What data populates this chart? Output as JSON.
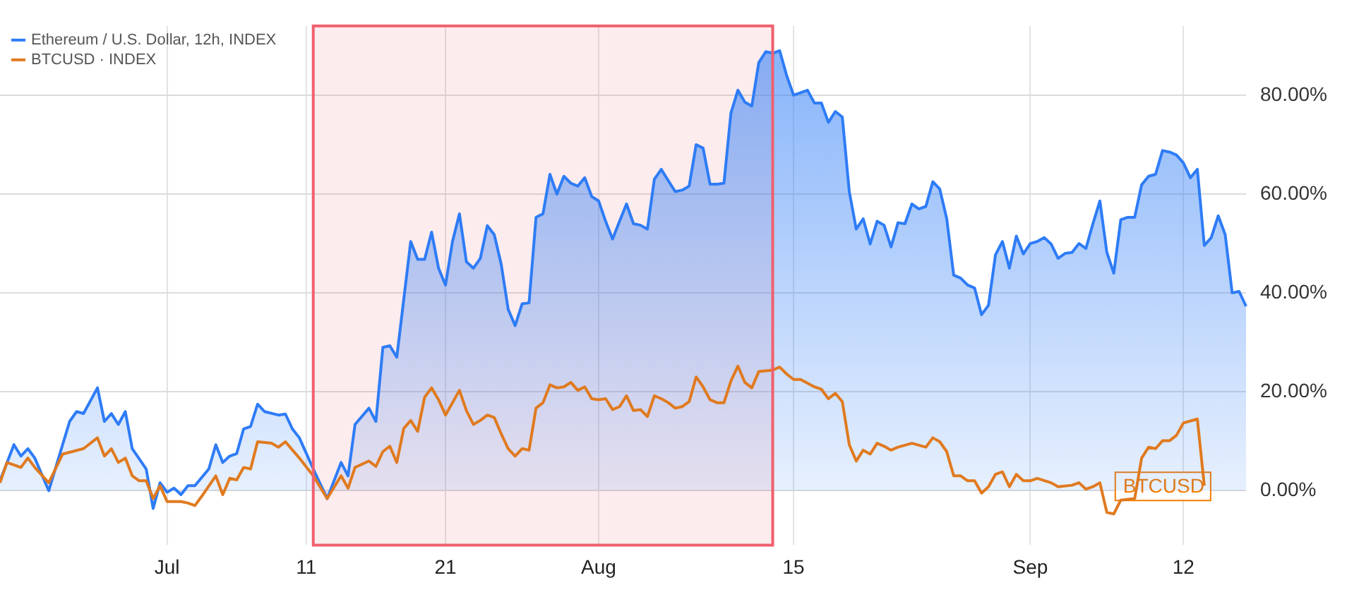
{
  "chart_data": {
    "type": "area",
    "legend": "top left",
    "grid": true,
    "xlim": [
      "--06-19",
      "--09-16T12:00"
    ],
    "xticks": [
      {
        "value": "--07-01",
        "label": "Jul"
      },
      {
        "value": "--07-11",
        "label": "11"
      },
      {
        "value": "--07-21",
        "label": "21"
      },
      {
        "value": "--08-01",
        "label": "Aug"
      },
      {
        "value": "--08-15",
        "label": "15"
      },
      {
        "value": "--09-01",
        "label": "Sep"
      },
      {
        "value": "--09-12",
        "label": "12"
      }
    ],
    "ylim": [
      -11,
      94
    ],
    "yticks": [
      {
        "value": 0,
        "label": "0.00%"
      },
      {
        "value": 20,
        "label": "20.00%"
      },
      {
        "value": 40,
        "label": "40.00%"
      },
      {
        "value": 60,
        "label": "60.00%"
      },
      {
        "value": 80,
        "label": "80.00%"
      }
    ],
    "bands": [
      {
        "axis": "x",
        "from": "--07-11T12:00",
        "to": "--08-13T12:00",
        "color": "#f0606e"
      }
    ],
    "annotations": [
      {
        "text": "BTCUSD",
        "x": "--09-13T12:00",
        "y": 1
      }
    ],
    "series": [
      {
        "name": "Ethereum / U.S. Dollar, 12h, INDEX",
        "color": "#2e7cf6",
        "x": [
          "--06-19",
          "--06-20",
          "--06-20T12:00",
          "--06-21",
          "--06-21T12:00",
          "--06-22T12:00",
          "--06-24",
          "--06-24T12:00",
          "--06-25",
          "--06-26",
          "--06-26T12:00",
          "--06-27",
          "--06-27T12:00",
          "--06-28",
          "--06-28T12:00",
          "--06-29T12:00",
          "--06-30",
          "--06-30T12:00",
          "--07-01",
          "--07-01T12:00",
          "--07-02",
          "--07-02T12:00",
          "--07-03",
          "--07-04",
          "--07-04T12:00",
          "--07-05",
          "--07-05T12:00",
          "--07-06",
          "--07-06T12:00",
          "--07-07",
          "--07-07T12:00",
          "--07-08",
          "--07-09",
          "--07-09T12:00",
          "--07-10",
          "--07-10T12:00",
          "--07-11T12:00",
          "--07-12T12:00",
          "--07-13T12:00",
          "--07-14",
          "--07-14T12:00",
          "--07-15T12:00",
          "--07-16",
          "--07-16T12:00",
          "--07-17",
          "--07-17T12:00",
          "--07-18T12:00",
          "--07-19",
          "--07-19T12:00",
          "--07-20",
          "--07-20T12:00",
          "--07-21",
          "--07-21T12:00",
          "--07-22",
          "--07-22T12:00",
          "--07-23",
          "--07-23T12:00",
          "--07-24",
          "--07-24T12:00",
          "--07-25",
          "--07-25T12:00",
          "--07-26",
          "--07-26T12:00",
          "--07-27",
          "--07-27T12:00",
          "--07-28",
          "--07-28T12:00",
          "--07-29",
          "--07-29T12:00",
          "--07-30",
          "--07-30T12:00",
          "--07-31",
          "--07-31T12:00",
          "--08-01",
          "--08-01T12:00",
          "--08-02",
          "--08-02T12:00",
          "--08-03",
          "--08-03T12:00",
          "--08-04",
          "--08-04T12:00",
          "--08-05",
          "--08-05T12:00",
          "--08-06",
          "--08-06T12:00",
          "--08-07",
          "--08-07T12:00",
          "--08-08",
          "--08-08T12:00",
          "--08-09",
          "--08-09T12:00",
          "--08-10",
          "--08-10T12:00",
          "--08-11",
          "--08-11T12:00",
          "--08-12",
          "--08-12T12:00",
          "--08-13",
          "--08-13T12:00",
          "--08-14",
          "--08-14T12:00",
          "--08-15",
          "--08-15T12:00",
          "--08-16",
          "--08-16T12:00",
          "--08-17",
          "--08-17T12:00",
          "--08-18",
          "--08-18T12:00",
          "--08-19",
          "--08-19T12:00",
          "--08-20",
          "--08-20T12:00",
          "--08-21",
          "--08-21T12:00",
          "--08-22",
          "--08-22T12:00",
          "--08-23",
          "--08-23T12:00",
          "--08-24",
          "--08-24T12:00",
          "--08-25",
          "--08-25T12:00",
          "--08-26",
          "--08-26T12:00",
          "--08-27",
          "--08-27T12:00",
          "--08-28",
          "--08-28T12:00",
          "--08-29",
          "--08-29T12:00",
          "--08-30",
          "--08-30T12:00",
          "--08-31",
          "--08-31T12:00",
          "--09-01",
          "--09-01T12:00",
          "--09-02",
          "--09-02T12:00",
          "--09-03",
          "--09-03T12:00",
          "--09-04",
          "--09-04T12:00",
          "--09-05",
          "--09-05T12:00",
          "--09-06",
          "--09-06T12:00",
          "--09-07",
          "--09-07T12:00",
          "--09-08",
          "--09-08T12:00",
          "--09-09",
          "--09-09T12:00",
          "--09-10",
          "--09-10T12:00",
          "--09-11",
          "--09-11T12:00",
          "--09-12",
          "--09-12T12:00",
          "--09-13",
          "--09-13T12:00",
          "--09-14",
          "--09-14T12:00",
          "--09-15",
          "--09-15T12:00",
          "--09-16",
          "--09-16T12:00"
        ],
        "values": [
          2,
          9.3,
          7,
          8.5,
          6.6,
          0,
          14,
          16,
          15.6,
          20.8,
          14,
          15.6,
          13.4,
          16,
          8.5,
          4.4,
          -3.6,
          1.6,
          -0.3,
          0.5,
          -0.8,
          1,
          1,
          4.4,
          9.3,
          5.7,
          7,
          7.5,
          12.5,
          13,
          17.5,
          16,
          15.3,
          15.5,
          12.5,
          10.7,
          4.4,
          -1.6,
          5.7,
          3,
          13.4,
          16.7,
          14,
          29,
          29.3,
          27,
          50.4,
          46.8,
          46.8,
          52.3,
          45,
          41.6,
          50.4,
          56,
          46.3,
          45,
          47,
          53.6,
          51.8,
          45.8,
          36.7,
          33.4,
          37.8,
          38,
          55.3,
          56,
          64,
          60,
          63.6,
          62.2,
          61.6,
          63.3,
          59.5,
          58.6,
          54.5,
          50.9,
          54.5,
          58,
          54,
          53.7,
          52.9,
          63,
          65,
          62.7,
          60.5,
          60.8,
          61.6,
          70,
          69.3,
          62,
          62,
          62.2,
          76.4,
          81,
          78.6,
          77.8,
          86.6,
          88.8,
          88.5,
          89,
          84,
          80,
          80.5,
          81,
          78.4,
          78.4,
          74.5,
          76.7,
          75.6,
          60.5,
          52.9,
          55,
          49.9,
          54.5,
          53.7,
          49.3,
          54.2,
          54,
          58,
          57,
          57.5,
          62.5,
          61,
          55,
          43.6,
          43,
          41.6,
          41,
          35.6,
          37.5,
          47.7,
          50.4,
          45,
          51.5,
          47.9,
          50,
          50.4,
          51.2,
          49.9,
          47,
          48,
          48.2,
          50,
          49,
          54,
          58.6,
          48.2,
          44,
          54.8,
          55.3,
          55.3,
          61.9,
          63.6,
          64,
          68.8,
          68.5,
          67.9,
          66.3,
          63.3,
          65,
          49.6,
          51.2,
          55.6,
          51.8,
          40,
          40.3,
          37.3
        ]
      },
      {
        "name": "BTCUSD · INDEX",
        "type": "line",
        "color": "#e07a1f",
        "x": [
          "--06-19",
          "--06-19T12:00",
          "--06-20T12:00",
          "--06-21",
          "--06-21T12:00",
          "--06-22T12:00",
          "--06-23T12:00",
          "--06-25",
          "--06-26",
          "--06-26T12:00",
          "--06-27",
          "--06-27T12:00",
          "--06-28",
          "--06-28T12:00",
          "--06-29",
          "--06-29T12:00",
          "--06-30",
          "--06-30T12:00",
          "--07-01",
          "--07-02",
          "--07-02T12:00",
          "--07-03",
          "--07-03T12:00",
          "--07-04T12:00",
          "--07-05",
          "--07-05T12:00",
          "--07-06",
          "--07-06T12:00",
          "--07-07",
          "--07-07T12:00",
          "--07-08T12:00",
          "--07-09",
          "--07-09T12:00",
          "--07-10T12:00",
          "--07-11T12:00",
          "--07-12T12:00",
          "--07-13T12:00",
          "--07-14",
          "--07-14T12:00",
          "--07-15T12:00",
          "--07-16",
          "--07-16T12:00",
          "--07-17",
          "--07-17T12:00",
          "--07-18",
          "--07-18T12:00",
          "--07-19",
          "--07-19T12:00",
          "--07-20",
          "--07-20T12:00",
          "--07-21",
          "--07-22",
          "--07-22T12:00",
          "--07-23",
          "--07-23T12:00",
          "--07-24",
          "--07-24T12:00",
          "--07-25",
          "--07-25T12:00",
          "--07-26",
          "--07-26T12:00",
          "--07-27",
          "--07-27T12:00",
          "--07-28",
          "--07-28T12:00",
          "--07-29",
          "--07-29T12:00",
          "--07-30",
          "--07-30T12:00",
          "--07-31",
          "--07-31T12:00",
          "--08-01",
          "--08-01T12:00",
          "--08-02",
          "--08-02T12:00",
          "--08-03",
          "--08-03T12:00",
          "--08-04",
          "--08-04T12:00",
          "--08-05",
          "--08-05T12:00",
          "--08-06",
          "--08-06T12:00",
          "--08-07",
          "--08-07T12:00",
          "--08-08",
          "--08-08T12:00",
          "--08-09",
          "--08-09T12:00",
          "--08-10",
          "--08-10T12:00",
          "--08-11",
          "--08-11T12:00",
          "--08-12",
          "--08-12T12:00",
          "--08-13T12:00",
          "--08-14",
          "--08-14T12:00",
          "--08-15",
          "--08-15T12:00",
          "--08-16T12:00",
          "--08-17",
          "--08-17T12:00",
          "--08-18",
          "--08-18T12:00",
          "--08-19",
          "--08-19T12:00",
          "--08-20",
          "--08-20T12:00",
          "--08-21",
          "--08-21T12:00",
          "--08-22",
          "--08-22T12:00",
          "--08-23T12:00",
          "--08-24T12:00",
          "--08-25",
          "--08-25T12:00",
          "--08-26",
          "--08-26T12:00",
          "--08-27",
          "--08-27T12:00",
          "--08-28",
          "--08-28T12:00",
          "--08-29",
          "--08-29T12:00",
          "--08-30",
          "--08-30T12:00",
          "--08-31",
          "--08-31T12:00",
          "--09-01",
          "--09-01T12:00",
          "--09-02T12:00",
          "--09-03",
          "--09-04",
          "--09-04T12:00",
          "--09-05",
          "--09-05T12:00",
          "--09-06",
          "--09-06T12:00",
          "--09-07",
          "--09-07T12:00",
          "--09-08T12:00",
          "--09-09",
          "--09-09T12:00",
          "--09-10",
          "--09-10T12:00",
          "--09-11",
          "--09-11T12:00",
          "--09-12",
          "--09-13",
          "--09-13T12:00"
        ],
        "values": [
          1.6,
          5.7,
          4.7,
          6.6,
          4.7,
          1.6,
          7.4,
          8.5,
          10.7,
          7,
          8.5,
          5.7,
          6.6,
          3,
          2,
          2,
          -1.6,
          1,
          -2.2,
          -2.2,
          -2.5,
          -3,
          -1.1,
          3,
          -0.8,
          2.5,
          2.2,
          4.7,
          4.4,
          9.9,
          9.6,
          8.8,
          9.9,
          6.6,
          3,
          -1.6,
          3,
          0.5,
          4.7,
          6,
          4.9,
          7.9,
          9,
          5.7,
          12.6,
          14.2,
          12,
          18.9,
          20.8,
          18.4,
          15.3,
          20.3,
          16.2,
          13.4,
          14.2,
          15.3,
          14.8,
          11.5,
          8.5,
          7,
          8.5,
          8.2,
          16.7,
          17.8,
          21.4,
          20.8,
          21,
          21.9,
          20.3,
          21,
          18.6,
          18.4,
          18.6,
          16.4,
          17,
          19.2,
          16.2,
          16.4,
          15,
          19.2,
          18.6,
          17.8,
          16.7,
          17,
          18,
          23,
          21,
          18.4,
          17.8,
          17.8,
          22.2,
          25.2,
          21.9,
          20.8,
          24.1,
          24.4,
          25,
          23.6,
          22.5,
          22.5,
          21,
          20.5,
          18.6,
          19.7,
          18,
          9.3,
          6,
          8.2,
          7.4,
          9.6,
          9,
          8.2,
          8.8,
          9.6,
          8.8,
          10.7,
          9.9,
          7.9,
          3,
          3,
          2,
          2,
          -0.5,
          0.8,
          3.3,
          3.8,
          0.8,
          3.3,
          2,
          2,
          2.5,
          1.6,
          0.8,
          1.1,
          1.6,
          0.3,
          0.8,
          1.6,
          -4.4,
          -4.7,
          -1.9,
          -1.6,
          6.6,
          8.8,
          8.5,
          10.1,
          10.1,
          11.2,
          13.7,
          14.5,
          1
        ]
      }
    ]
  }
}
